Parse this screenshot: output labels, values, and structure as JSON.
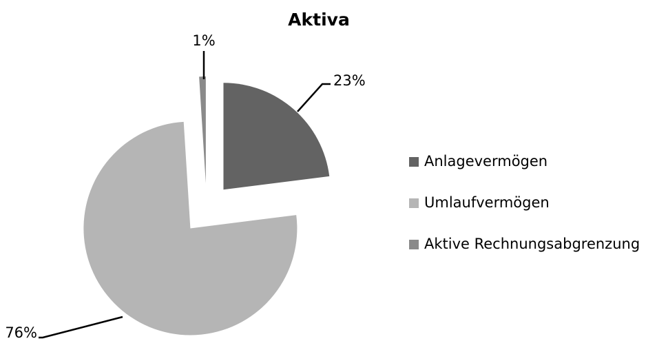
{
  "chart_data": {
    "type": "pie",
    "title": "Aktiva",
    "categories": [
      "Anlagevermögen",
      "Umlaufvermögen",
      "Aktive Rechnungsabgrenzung"
    ],
    "values": [
      23,
      76,
      1
    ],
    "value_labels": [
      "23%",
      "76%",
      "1%"
    ],
    "colors": [
      "#636363",
      "#b5b5b5",
      "#8a8a8a"
    ],
    "legend": "right"
  }
}
